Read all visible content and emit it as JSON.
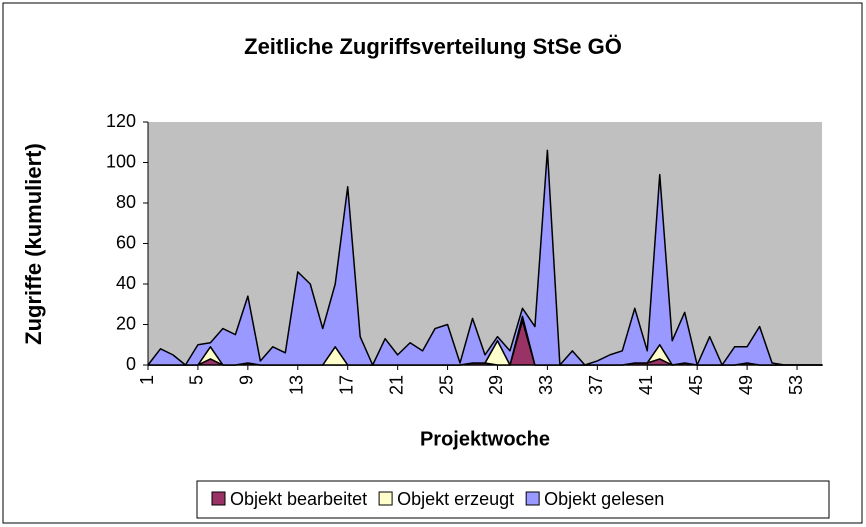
{
  "chart_data": {
    "type": "stacked_area",
    "title": "Zeitliche Zugriffsverteilung StSe GÖ",
    "x_label": "Projektwoche",
    "y_label": "Zugriffe (kumuliert)",
    "x": [
      1,
      2,
      3,
      4,
      5,
      6,
      7,
      8,
      9,
      10,
      11,
      12,
      13,
      14,
      15,
      16,
      17,
      18,
      19,
      20,
      21,
      22,
      23,
      24,
      25,
      26,
      27,
      28,
      29,
      30,
      31,
      32,
      33,
      34,
      35,
      36,
      37,
      38,
      39,
      40,
      41,
      42,
      43,
      44,
      45,
      46,
      47,
      48,
      49,
      50,
      51,
      52,
      53,
      54,
      55
    ],
    "xlim": [
      1,
      55
    ],
    "xticks": [
      1,
      5,
      9,
      13,
      17,
      21,
      25,
      29,
      33,
      37,
      41,
      45,
      49,
      53
    ],
    "ylim": [
      0,
      120
    ],
    "yticks": [
      0,
      20,
      40,
      60,
      80,
      100,
      120
    ],
    "grid": false,
    "legend": "bottom",
    "series": [
      {
        "name": "Objekt bearbeitet",
        "color": "#993366",
        "values": [
          0,
          0,
          0,
          0,
          0,
          3,
          0,
          0,
          1,
          0,
          0,
          0,
          0,
          0,
          0,
          0,
          0,
          0,
          0,
          0,
          0,
          0,
          0,
          0,
          0,
          0,
          1,
          1,
          0,
          0,
          22,
          0,
          0,
          0,
          0,
          0,
          0,
          0,
          0,
          1,
          1,
          3,
          0,
          1,
          0,
          0,
          0,
          0,
          1,
          0,
          0,
          0,
          0,
          0,
          0
        ]
      },
      {
        "name": "Objekt erzeugt",
        "color": "#ffffcc",
        "values": [
          0,
          0,
          0,
          0,
          0,
          6,
          0,
          0,
          0,
          0,
          0,
          0,
          0,
          0,
          0,
          9,
          0,
          0,
          0,
          0,
          0,
          0,
          0,
          0,
          0,
          0,
          0,
          0,
          12,
          0,
          2,
          0,
          0,
          0,
          0,
          0,
          0,
          0,
          0,
          0,
          0,
          7,
          0,
          0,
          0,
          0,
          0,
          0,
          0,
          0,
          0,
          0,
          0,
          0,
          0
        ]
      },
      {
        "name": "Objekt gelesen",
        "color": "#9999ff",
        "values": [
          0,
          8,
          5,
          0,
          10,
          2,
          18,
          15,
          33,
          2,
          9,
          6,
          46,
          40,
          18,
          31,
          88,
          14,
          0,
          13,
          5,
          11,
          7,
          18,
          20,
          1,
          22,
          4,
          2,
          7,
          4,
          19,
          106,
          0,
          7,
          0,
          2,
          5,
          7,
          27,
          6,
          84,
          12,
          25,
          0,
          14,
          0,
          9,
          8,
          19,
          1,
          0,
          0,
          0,
          0
        ]
      }
    ]
  }
}
